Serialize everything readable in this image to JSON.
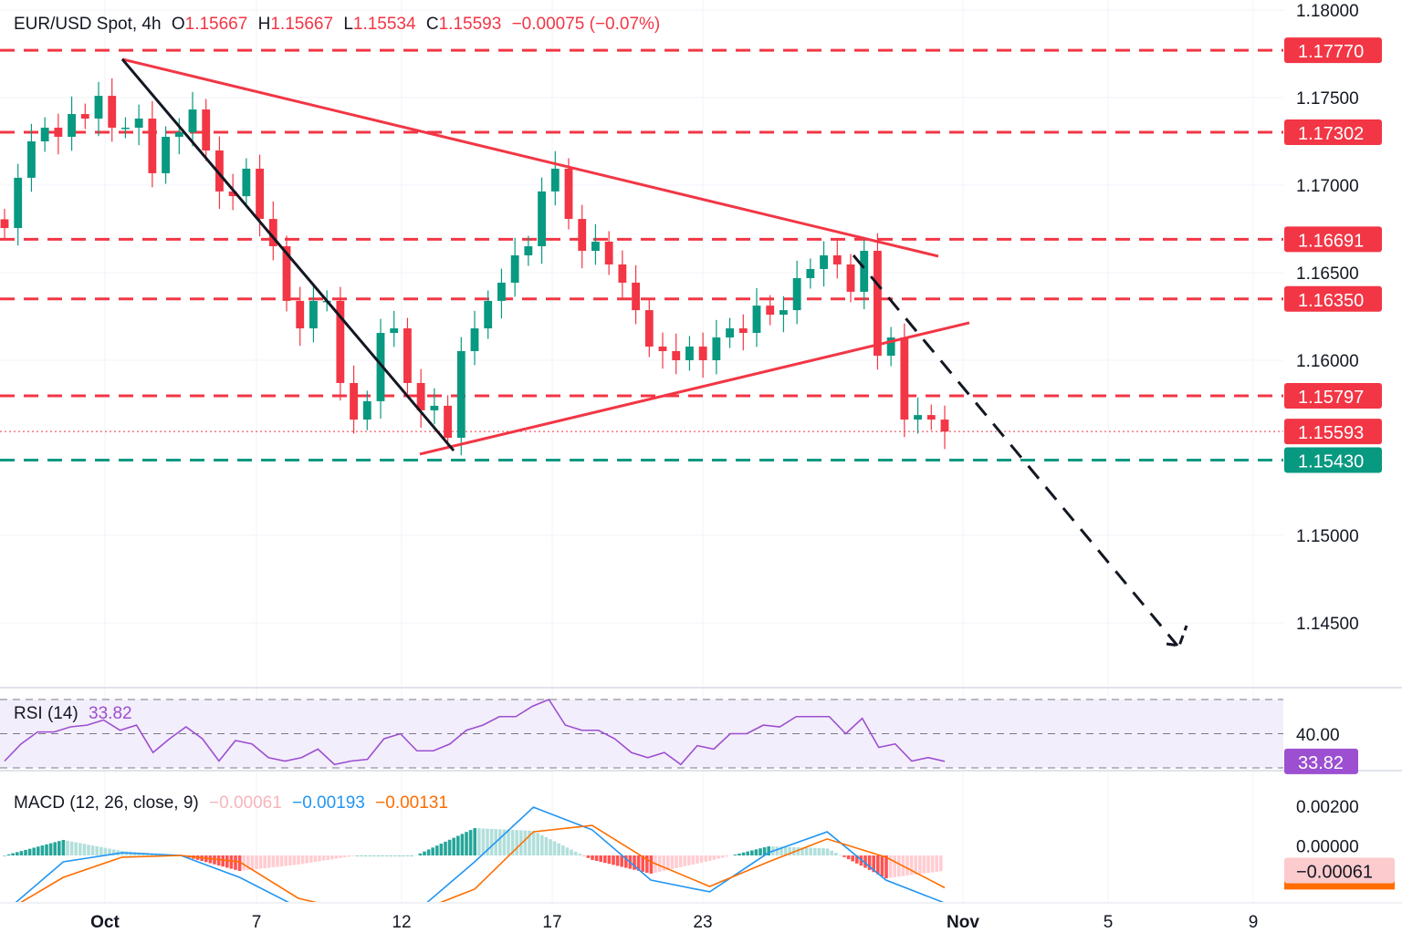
{
  "header": {
    "symbol": "EUR/USD Spot, 4h",
    "open_label": "O",
    "open": "1.15667",
    "high_label": "H",
    "high": "1.15667",
    "low_label": "L",
    "low": "1.15534",
    "close_label": "C",
    "close": "1.15593",
    "change": "−0.00075 (−0.07%)"
  },
  "colors": {
    "up": "#089981",
    "down": "#f23645",
    "level_red": "#f23645",
    "level_green": "#089981",
    "rsi": "#9c4fd0",
    "macd": "#2196f3",
    "signal": "#ff6d00"
  },
  "chart_data": [
    {
      "type": "candlestick",
      "title": "EUR/USD Spot, 4h",
      "ylim": [
        1.1425,
        1.1805
      ],
      "y_ticks": [
        "1.18000",
        "1.17500",
        "1.17000",
        "1.16500",
        "1.16000",
        "1.15000",
        "1.14500"
      ],
      "x_ticks": [
        "Oct",
        "7",
        "12",
        "17",
        "23",
        "Nov",
        "5",
        "9"
      ],
      "closes": [
        1.16755,
        1.17042,
        1.1725,
        1.17328,
        1.17276,
        1.17406,
        1.1738,
        1.1751,
        1.17328,
        1.17328,
        1.1738,
        1.17068,
        1.17276,
        1.17302,
        1.17432,
        1.17198,
        1.16964,
        1.16937,
        1.17094,
        1.16807,
        1.16651,
        1.16339,
        1.16182,
        1.16339,
        1.16339,
        1.1587,
        1.15661,
        1.15766,
        1.16156,
        1.16182,
        1.1587,
        1.15714,
        1.1574,
        1.15557,
        1.16052,
        1.16182,
        1.16339,
        1.16443,
        1.16599,
        1.16651,
        1.16964,
        1.17094,
        1.16807,
        1.16625,
        1.16677,
        1.16547,
        1.16443,
        1.16286,
        1.16078,
        1.16052,
        1.16,
        1.16078,
        1.16,
        1.1613,
        1.16182,
        1.16156,
        1.16312,
        1.1626,
        1.16286,
        1.16469,
        1.16521,
        1.16599,
        1.16547,
        1.16391,
        1.16625,
        1.16026,
        1.1613,
        1.15661,
        1.15687,
        1.15661,
        1.15593
      ],
      "levels": [
        {
          "price": 1.1777,
          "label": "1.17770",
          "color": "red"
        },
        {
          "price": 1.17302,
          "label": "1.17302",
          "color": "red"
        },
        {
          "price": 1.16691,
          "label": "1.16691",
          "color": "red"
        },
        {
          "price": 1.1635,
          "label": "1.16350",
          "color": "red"
        },
        {
          "price": 1.15797,
          "label": "1.15797",
          "color": "red"
        },
        {
          "price": 1.1543,
          "label": "1.15430",
          "color": "green"
        }
      ],
      "current_price": {
        "price": 1.15593,
        "label": "1.15593"
      },
      "trendlines": [
        {
          "name": "upper-resistance",
          "from": 1.17719,
          "to": 1.16594,
          "color": "red",
          "style": "solid"
        },
        {
          "name": "lower-support",
          "from": 1.15464,
          "to": 1.16214,
          "color": "red",
          "style": "solid"
        },
        {
          "name": "october-downtrend",
          "from": 1.17719,
          "to": 1.15484,
          "color": "black",
          "style": "solid"
        },
        {
          "name": "projection",
          "from": 1.16599,
          "to": 1.1437,
          "color": "black",
          "style": "dashed"
        }
      ]
    },
    {
      "type": "line",
      "title": "RSI (14)",
      "value": "33.82",
      "axis_label": "40.00",
      "ylim": [
        30,
        70
      ],
      "band": [
        30,
        70
      ],
      "values": [
        34,
        44,
        51,
        51,
        54,
        55,
        58,
        52,
        55,
        39,
        47,
        54,
        47,
        34,
        46,
        44,
        36,
        34,
        36,
        41,
        32,
        34,
        35,
        47,
        50,
        40,
        40,
        44,
        52,
        55,
        60,
        60,
        66,
        70,
        55,
        52,
        52,
        47,
        39,
        36,
        39,
        32,
        43,
        41,
        50,
        50,
        55,
        54,
        60,
        60,
        60,
        50,
        59,
        42,
        44,
        34,
        36,
        33.82
      ]
    },
    {
      "type": "line",
      "title": "MACD (12, 26, close, 9)",
      "histogram_value": "−0.00061",
      "macd_value": "−0.00193",
      "signal_value": "−0.00131",
      "y_ticks": [
        "0.00200",
        "0.00000"
      ],
      "series": [
        {
          "name": "MACD",
          "values": [
            -0.0023,
            -0.00026,
            0.00011,
            0,
            -0.00089,
            -0.00211,
            -0.0023,
            -0.0023,
            -0.00026,
            0.00196,
            0.00104,
            -0.001,
            -0.00148,
            0.00011,
            0.00096,
            -0.001,
            -0.00193
          ]
        },
        {
          "name": "Signal",
          "values": [
            -0.0023,
            -0.00089,
            -7e-05,
            0,
            -0.00026,
            -0.00174,
            -0.0023,
            -0.0023,
            -0.00137,
            0.00096,
            0.00122,
            -0.00026,
            -0.00126,
            -0.00026,
            0.00067,
            -7e-05,
            -0.00131
          ]
        }
      ]
    }
  ]
}
